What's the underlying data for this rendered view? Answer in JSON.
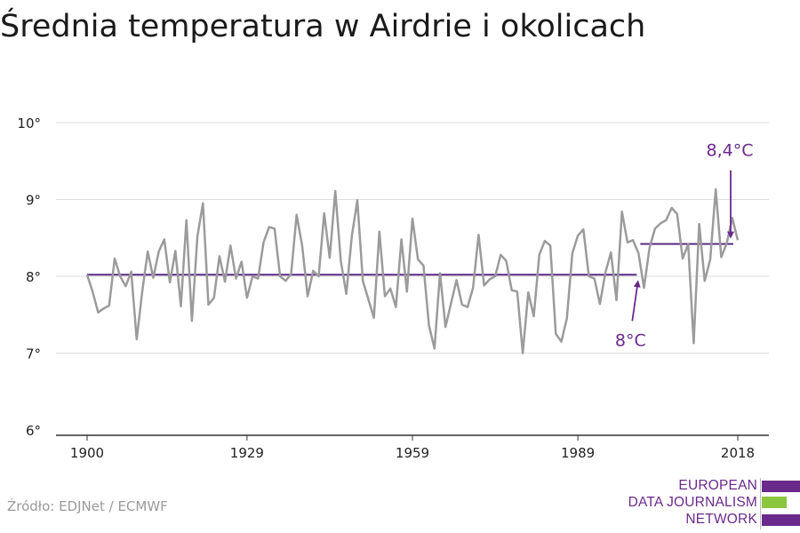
{
  "header": {
    "title": "Średnia temperatura w Airdrie i okolicach"
  },
  "footer": {
    "source": "Źródło: EDJNet / ECMWF"
  },
  "logo": {
    "lines": [
      "EUROPEAN",
      "DATA JOURNALISM",
      "NETWORK"
    ],
    "colors": {
      "purple": "#6a2a8c",
      "green": "#8cc63f"
    }
  },
  "colors": {
    "series": "#9b9b9b",
    "average": "#5b2a86",
    "annotation": "#6a2a8c",
    "grid": "#dddddd"
  },
  "chart_data": {
    "type": "line",
    "title": "Średnia temperatura w Airdrie i okolicach",
    "xlabel": "",
    "ylabel": "",
    "xlim": [
      1900,
      2018
    ],
    "ylim": [
      6,
      10
    ],
    "x_ticks": [
      1900,
      1929,
      1959,
      1989,
      2018
    ],
    "x_tick_labels": [
      "1900",
      "1929",
      "1959",
      "1989",
      "2018"
    ],
    "y_ticks": [
      6,
      7,
      8,
      9,
      10
    ],
    "y_tick_labels": [
      "6°",
      "7°",
      "8°",
      "9°",
      "10°"
    ],
    "grid": true,
    "series": [
      {
        "x": [
          1900,
          1901,
          1902,
          1903,
          1904,
          1905,
          1906,
          1907,
          1908,
          1909,
          1910,
          1911,
          1912,
          1913,
          1914,
          1915,
          1916,
          1917,
          1918,
          1919,
          1920,
          1921,
          1922,
          1923,
          1924,
          1925,
          1926,
          1927,
          1928,
          1929,
          1930,
          1931,
          1932,
          1933,
          1934,
          1935,
          1936,
          1937,
          1938,
          1939,
          1940,
          1941,
          1942,
          1943,
          1944,
          1945,
          1946,
          1947,
          1948,
          1949,
          1950,
          1951,
          1952,
          1953,
          1954,
          1955,
          1956,
          1957,
          1958,
          1959,
          1960,
          1961,
          1962,
          1963,
          1964,
          1965,
          1966,
          1967,
          1968,
          1969,
          1970,
          1971,
          1972,
          1973,
          1974,
          1975,
          1976,
          1977,
          1978,
          1979,
          1980,
          1981,
          1982,
          1983,
          1984,
          1985,
          1986,
          1987,
          1988,
          1989,
          1990,
          1991,
          1992,
          1993,
          1994,
          1995,
          1996,
          1997,
          1998,
          1999,
          2000,
          2001,
          2002,
          2003,
          2004,
          2005,
          2006,
          2007,
          2008,
          2009,
          2010,
          2011,
          2012,
          2013,
          2014,
          2015,
          2016,
          2017,
          2018
        ],
        "values": [
          8.02,
          7.8,
          7.53,
          7.58,
          7.62,
          8.23,
          8.0,
          7.87,
          8.06,
          7.18,
          7.8,
          8.32,
          7.98,
          8.32,
          8.48,
          7.92,
          8.33,
          7.61,
          8.73,
          7.42,
          8.52,
          8.95,
          7.63,
          7.72,
          8.26,
          7.93,
          8.4,
          7.97,
          8.19,
          7.72,
          8.0,
          7.97,
          8.44,
          8.64,
          8.62,
          8.0,
          7.94,
          8.03,
          8.8,
          8.4,
          7.74,
          8.07,
          8.0,
          8.82,
          8.24,
          9.11,
          8.2,
          7.77,
          8.52,
          8.99,
          7.94,
          7.7,
          7.46,
          8.58,
          7.74,
          7.84,
          7.6,
          8.48,
          7.8,
          8.75,
          8.22,
          8.14,
          7.36,
          7.06,
          8.04,
          7.34,
          7.65,
          7.95,
          7.63,
          7.6,
          7.85,
          8.54,
          7.88,
          7.96,
          8.0,
          8.28,
          8.2,
          7.82,
          7.8,
          7.0,
          7.79,
          7.48,
          8.28,
          8.46,
          8.4,
          7.25,
          7.15,
          7.45,
          8.3,
          8.53,
          8.61,
          8.0,
          7.97,
          7.64,
          8.05,
          8.31,
          7.69,
          8.84,
          8.44,
          8.47,
          8.3,
          7.85,
          8.37,
          8.62,
          8.69,
          8.73,
          8.89,
          8.81,
          8.23,
          8.42,
          7.13,
          8.68,
          7.94,
          8.22,
          9.13,
          8.25,
          8.43,
          8.76,
          8.47
        ]
      }
    ],
    "averages": [
      {
        "label": "8°C",
        "value": 8.02,
        "from": 1900,
        "to": 2000
      },
      {
        "label": "8,4°C",
        "value": 8.42,
        "from": 2000,
        "to": 2018
      }
    ]
  }
}
